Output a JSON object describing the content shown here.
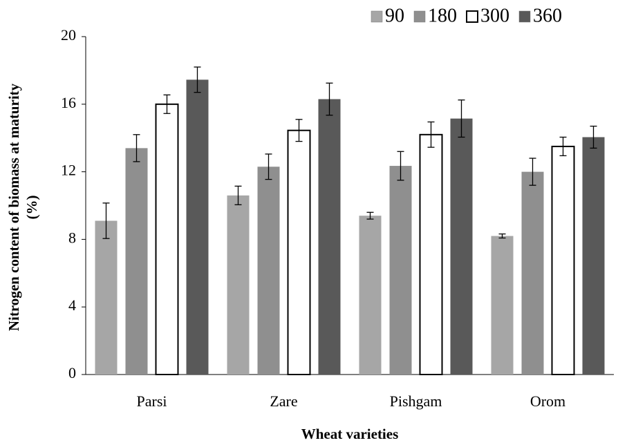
{
  "chart_data": {
    "type": "bar",
    "xlabel": "Wheat varieties",
    "ylabel": [
      "Nitrogen content of biomass at  maturity",
      "(%)"
    ],
    "categories": [
      "Parsi",
      "Zare",
      "Pishgam",
      "Orom"
    ],
    "series": [
      {
        "name": "90",
        "color": "#a6a6a6",
        "values": [
          9.1,
          10.6,
          9.4,
          8.2
        ],
        "errors": [
          1.05,
          0.55,
          0.2,
          0.12
        ]
      },
      {
        "name": "180",
        "color": "#8f8f8f",
        "values": [
          13.4,
          12.3,
          12.35,
          12.0
        ],
        "errors": [
          0.8,
          0.75,
          0.85,
          0.8
        ]
      },
      {
        "name": "300",
        "color": "#ffffff",
        "values": [
          16.0,
          14.45,
          14.2,
          13.5
        ],
        "errors": [
          0.55,
          0.65,
          0.75,
          0.55
        ]
      },
      {
        "name": "360",
        "color": "#595959",
        "values": [
          17.45,
          16.3,
          15.15,
          14.05
        ],
        "errors": [
          0.75,
          0.95,
          1.1,
          0.65
        ]
      }
    ],
    "ylim": [
      0,
      20
    ],
    "yticks": [
      0,
      4,
      8,
      12,
      16,
      20
    ]
  }
}
